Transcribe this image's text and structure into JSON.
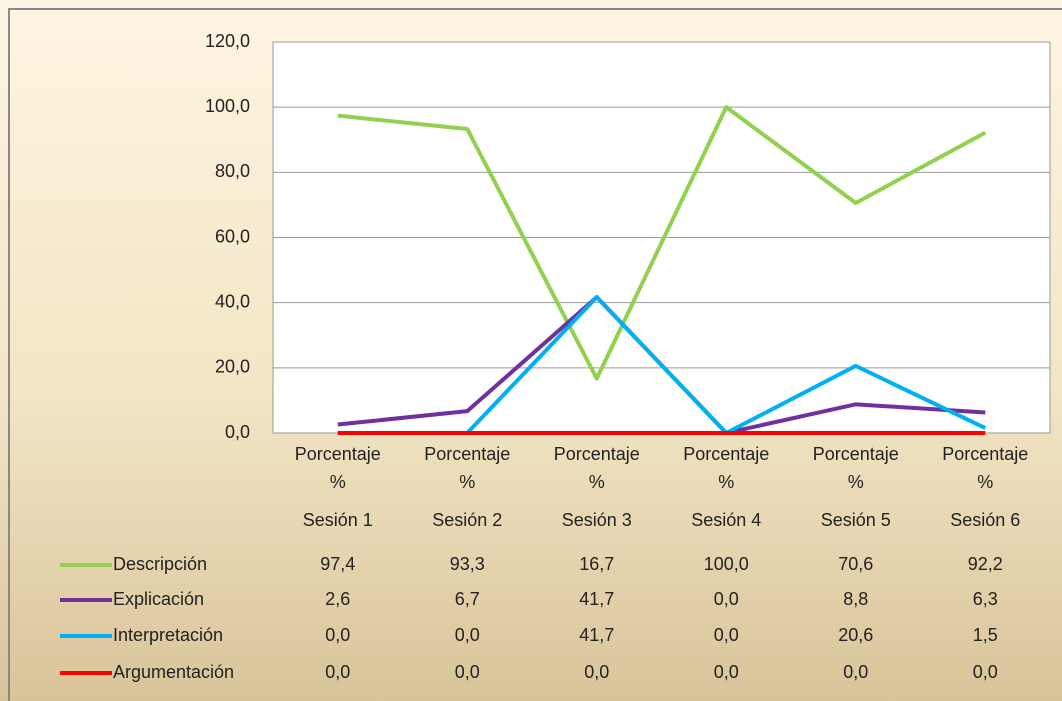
{
  "chart_data": {
    "type": "line",
    "categories": [
      "Porcentaje %",
      "Porcentaje %",
      "Porcentaje %",
      "Porcentaje %",
      "Porcentaje %",
      "Porcentaje %"
    ],
    "category_groups": [
      "Sesión 1",
      "Sesión 2",
      "Sesión 3",
      "Sesión 4",
      "Sesión 5",
      "Sesión 6"
    ],
    "series": [
      {
        "name": "Descripción",
        "color": "#92d050",
        "values": [
          97.4,
          93.3,
          16.7,
          100.0,
          70.6,
          92.2
        ],
        "value_labels": [
          "97,4",
          "93,3",
          "16,7",
          "100,0",
          "70,6",
          "92,2"
        ]
      },
      {
        "name": "Explicación",
        "color": "#7030a0",
        "values": [
          2.6,
          6.7,
          41.7,
          0.0,
          8.8,
          6.3
        ],
        "value_labels": [
          "2,6",
          "6,7",
          "41,7",
          "0,0",
          "8,8",
          "6,3"
        ]
      },
      {
        "name": "Interpretación",
        "color": "#00b0f0",
        "values": [
          0.0,
          0.0,
          41.7,
          0.0,
          20.6,
          1.5
        ],
        "value_labels": [
          "0,0",
          "0,0",
          "41,7",
          "0,0",
          "20,6",
          "1,5"
        ]
      },
      {
        "name": "Argumentación",
        "color": "#ff0000",
        "values": [
          0.0,
          0.0,
          0.0,
          0.0,
          0.0,
          0.0
        ],
        "value_labels": [
          "0,0",
          "0,0",
          "0,0",
          "0,0",
          "0,0",
          "0,0"
        ]
      }
    ],
    "ylim": [
      0,
      120
    ],
    "yticks": [
      {
        "value": 0,
        "label": "0,0"
      },
      {
        "value": 20,
        "label": "20,0"
      },
      {
        "value": 40,
        "label": "40,0"
      },
      {
        "value": 60,
        "label": "60,0"
      },
      {
        "value": 80,
        "label": "80,0"
      },
      {
        "value": 100,
        "label": "100,0"
      },
      {
        "value": 120,
        "label": "120,0"
      }
    ],
    "grid": true
  }
}
